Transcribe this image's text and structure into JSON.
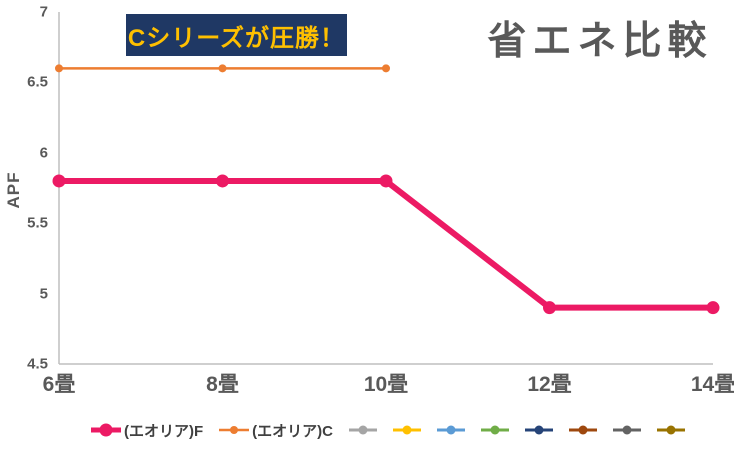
{
  "title": "省エネ比較",
  "annotation": {
    "text": "Cシリーズが圧勝！",
    "bg_color": "#1F3864",
    "text_color": "#FFC000"
  },
  "chart_data": {
    "type": "line",
    "title": "省エネ比較",
    "xlabel": "",
    "ylabel": "APF",
    "categories": [
      "6畳",
      "8畳",
      "10畳",
      "12畳",
      "14畳"
    ],
    "series": [
      {
        "name": "(エオリア)F",
        "color": "#EC1A64",
        "values": [
          5.8,
          5.8,
          5.8,
          4.9,
          4.9
        ],
        "line_width": 6,
        "marker_size": 6.5
      },
      {
        "name": "(エオリア)C",
        "color": "#ED7D31",
        "values": [
          6.6,
          6.6,
          6.6
        ],
        "line_width": 2.5,
        "marker_size": 4
      },
      {
        "name": "",
        "color": "#A5A5A5",
        "values": [],
        "line_width": 3,
        "marker_size": 4.5
      },
      {
        "name": "",
        "color": "#FFC000",
        "values": [],
        "line_width": 3,
        "marker_size": 4.5
      },
      {
        "name": "",
        "color": "#5B9BD5",
        "values": [],
        "line_width": 3,
        "marker_size": 4.5
      },
      {
        "name": "",
        "color": "#70AD47",
        "values": [],
        "line_width": 3,
        "marker_size": 4.5
      },
      {
        "name": "",
        "color": "#264478",
        "values": [],
        "line_width": 3,
        "marker_size": 4.5
      },
      {
        "name": "",
        "color": "#9E480E",
        "values": [],
        "line_width": 3,
        "marker_size": 4.5
      },
      {
        "name": "",
        "color": "#636363",
        "values": [],
        "line_width": 3,
        "marker_size": 4.5
      },
      {
        "name": "",
        "color": "#997300",
        "values": [],
        "line_width": 3,
        "marker_size": 4.5
      }
    ],
    "ylim": [
      4.5,
      7
    ],
    "yticks": [
      7,
      6.5,
      6,
      5.5,
      5,
      4.5
    ],
    "grid": false,
    "legend_position": "bottom",
    "axis_color": "#BFBFBF",
    "text_color": "#595959"
  }
}
